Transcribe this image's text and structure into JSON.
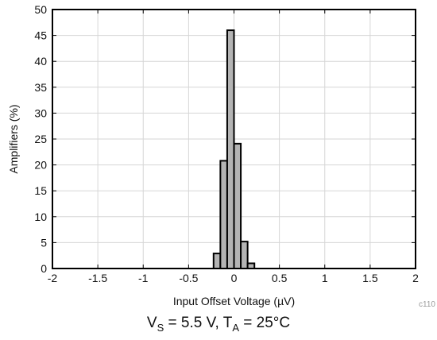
{
  "chart_data": {
    "type": "bar",
    "subtype": "histogram",
    "xlabel": "Input Offset Voltage (µV)",
    "ylabel": "Amplifiers (%)",
    "xlim": [
      -2,
      2
    ],
    "ylim": [
      0,
      50
    ],
    "x_ticks": [
      -2,
      -1.5,
      -1,
      -0.5,
      0,
      0.5,
      1,
      1.5,
      2
    ],
    "x_tick_labels": [
      "-2",
      "-1.5",
      "-1",
      "-0.5",
      "0",
      "0.5",
      "1",
      "1.5",
      "2"
    ],
    "y_ticks": [
      0,
      5,
      10,
      15,
      20,
      25,
      30,
      35,
      40,
      45,
      50
    ],
    "y_tick_labels": [
      "0",
      "5",
      "10",
      "15",
      "20",
      "25",
      "30",
      "35",
      "40",
      "45",
      "50"
    ],
    "grid": true,
    "bin_width": 0.075,
    "bins": [
      {
        "x_start": -0.225,
        "value": 2.9
      },
      {
        "x_start": -0.15,
        "value": 20.8
      },
      {
        "x_start": -0.075,
        "value": 46.0
      },
      {
        "x_start": 0.0,
        "value": 24.1
      },
      {
        "x_start": 0.075,
        "value": 5.2
      },
      {
        "x_start": 0.15,
        "value": 1.0
      }
    ],
    "colors": {
      "bar_fill": "#b4b4b4",
      "bar_edge": "#000000",
      "grid": "#d6d6d6"
    },
    "figure_id": "c110"
  },
  "caption": {
    "v": "V",
    "v_sub": "S",
    "v_value": " = 5.5 V, ",
    "t": "T",
    "t_sub": "A",
    "t_value": " = 25°C"
  }
}
